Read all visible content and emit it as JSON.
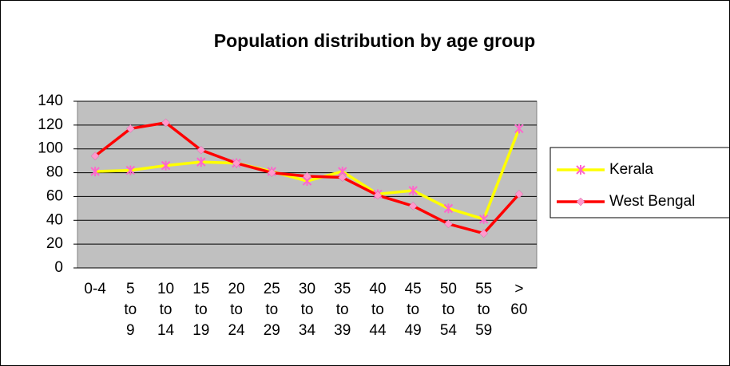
{
  "chart_data": {
    "type": "line",
    "title": "Population distribution by age group",
    "categories": [
      "0-4",
      "5 to 9",
      "10 to 14",
      "15 to 19",
      "20 to 24",
      "25 to 29",
      "30 to 34",
      "35 to 39",
      "40 to 44",
      "45 to 49",
      "50 to 54",
      "55 to 59",
      "> 60"
    ],
    "series": [
      {
        "name": "Kerala",
        "color": "#ffff00",
        "marker_color": "#ff66cc",
        "marker": "star",
        "values": [
          81,
          82,
          86,
          89,
          88,
          81,
          73,
          81,
          62,
          65,
          50,
          41,
          117
        ]
      },
      {
        "name": "West Bengal",
        "color": "#ff0000",
        "marker_color": "#ff99cc",
        "marker": "diamond",
        "values": [
          94,
          117,
          122,
          99,
          88,
          80,
          77,
          76,
          61,
          52,
          37,
          29,
          62
        ]
      }
    ],
    "ylim": [
      0,
      140
    ],
    "yticks": [
      0,
      20,
      40,
      60,
      80,
      100,
      120,
      140
    ],
    "grid": true,
    "legend": "right"
  }
}
